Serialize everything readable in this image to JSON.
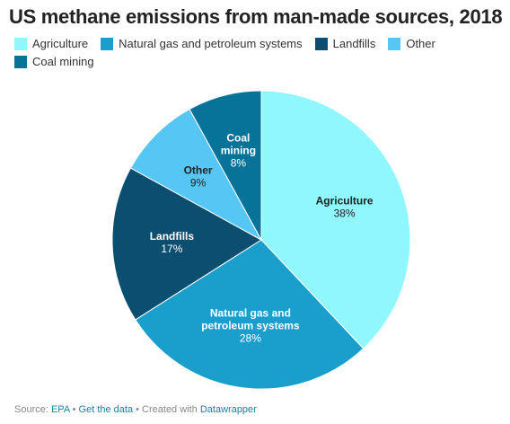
{
  "chart_data": {
    "type": "pie",
    "title": "US methane emissions from man-made sources, 2018",
    "slices": [
      {
        "label": "Agriculture",
        "label_lines": [
          "Agriculture"
        ],
        "value": 38,
        "display": "38%",
        "color": "#8ff7fd",
        "text_color": "#222222"
      },
      {
        "label": "Natural gas and petroleum systems",
        "label_lines": [
          "Natural gas and",
          "petroleum systems"
        ],
        "value": 28,
        "display": "28%",
        "color": "#1a9fcd",
        "text_color": "#ffffff"
      },
      {
        "label": "Landfills",
        "label_lines": [
          "Landfills"
        ],
        "value": 17,
        "display": "17%",
        "color": "#0c4e6f",
        "text_color": "#ffffff"
      },
      {
        "label": "Other",
        "label_lines": [
          "Other"
        ],
        "value": 9,
        "display": "9%",
        "color": "#56c6f5",
        "text_color": "#222222"
      },
      {
        "label": "Coal mining",
        "label_lines": [
          "Coal",
          "mining"
        ],
        "value": 8,
        "display": "8%",
        "color": "#087399",
        "text_color": "#ffffff"
      }
    ],
    "legend": [
      "Agriculture",
      "Natural gas and petroleum systems",
      "Landfills",
      "Other",
      "Coal mining"
    ]
  },
  "footer": {
    "source_prefix": "Source: ",
    "source": "EPA",
    "sep1": " • ",
    "get_data": "Get the data",
    "sep2": " • Created with ",
    "tool": "Datawrapper"
  }
}
